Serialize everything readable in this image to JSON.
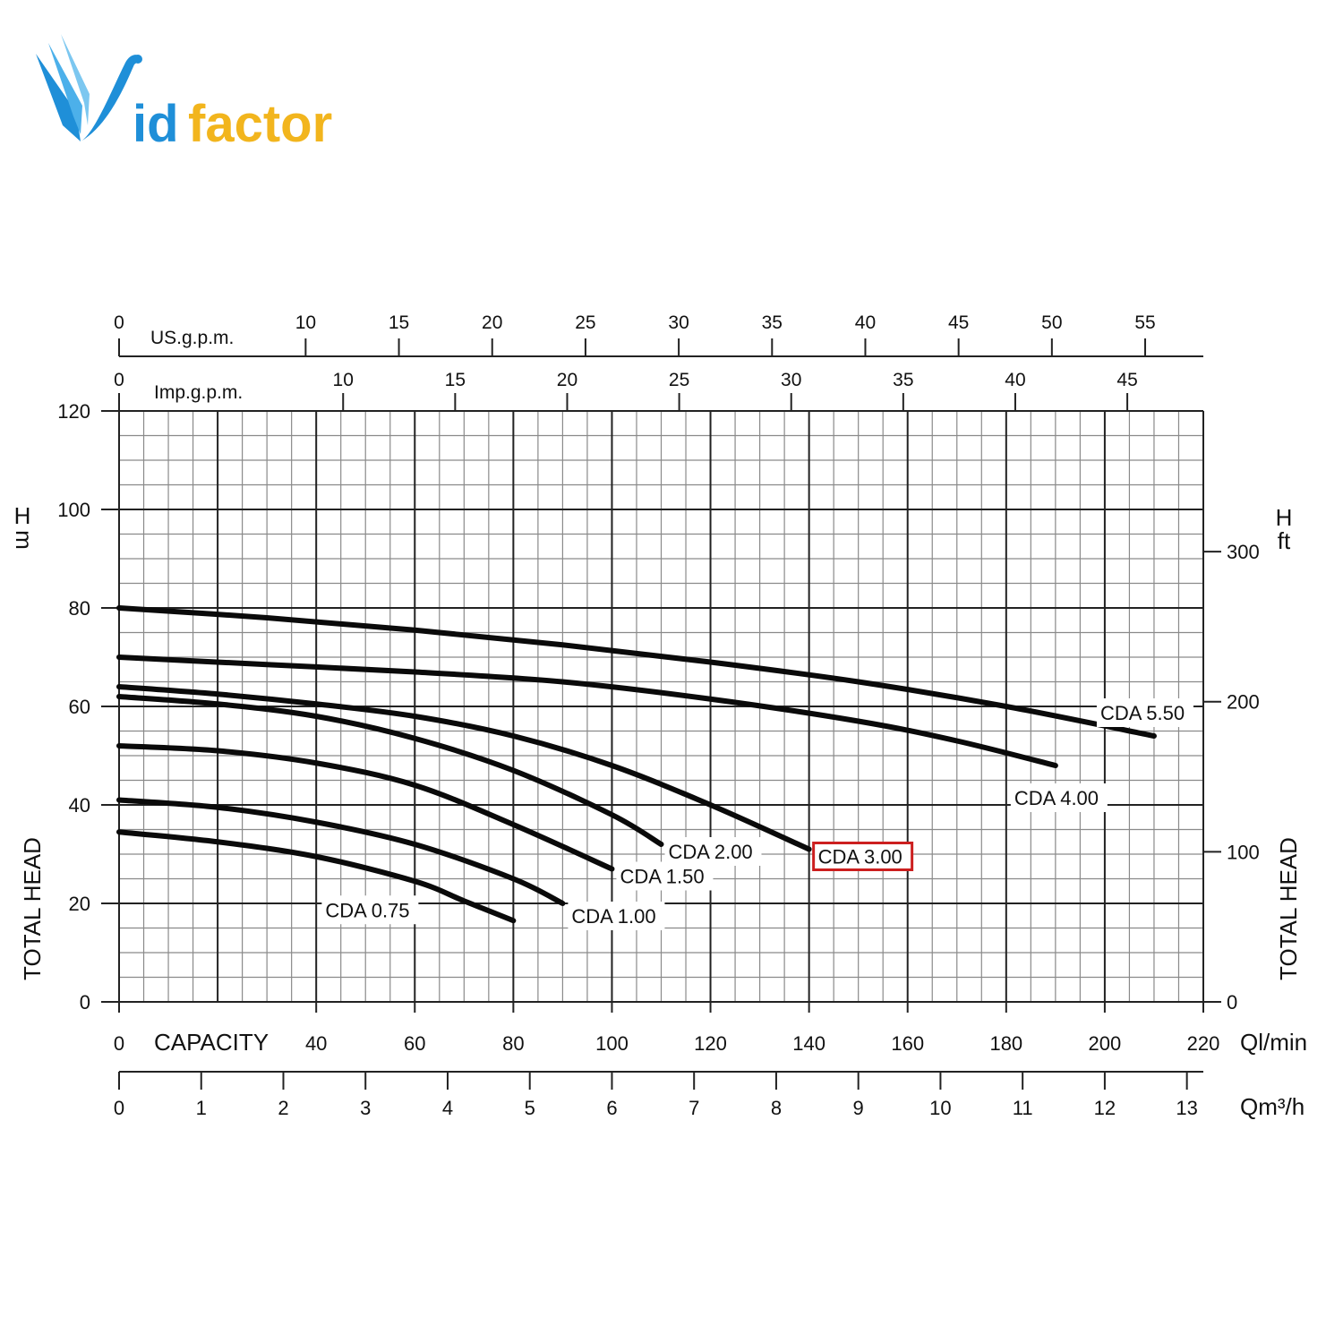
{
  "logo": {
    "text_v": "V",
    "text_id": "id",
    "text_factor": "factor",
    "colors": {
      "blue": "#1f8fd8",
      "yellow": "#f2b51d"
    }
  },
  "chart_data": {
    "type": "line",
    "title": "",
    "xlabel": "CAPACITY",
    "x_unit": "Ql/min",
    "ylabel": "TOTAL HEAD",
    "y_unit_left": "H m",
    "y_unit_right": "H ft",
    "xlim": [
      0,
      220
    ],
    "ylim": [
      0,
      120
    ],
    "grid": true,
    "x_ticks_lmin": [
      "0",
      "40",
      "60",
      "80",
      "100",
      "120",
      "140",
      "160",
      "180",
      "200",
      "220"
    ],
    "y_ticks_m": [
      "0",
      "20",
      "40",
      "60",
      "80",
      "100",
      "120"
    ],
    "secondary_axes": {
      "us_gpm": {
        "label": "US.g.p.m.",
        "ticks": [
          "0",
          "10",
          "15",
          "20",
          "25",
          "30",
          "35",
          "40",
          "45",
          "50",
          "55"
        ]
      },
      "imp_gpm": {
        "label": "Imp.g.p.m.",
        "ticks": [
          "0",
          "10",
          "15",
          "20",
          "25",
          "30",
          "35",
          "40",
          "45"
        ]
      },
      "m3h": {
        "label": "Qm³/h",
        "ticks": [
          "0",
          "1",
          "2",
          "3",
          "4",
          "5",
          "6",
          "7",
          "8",
          "9",
          "10",
          "11",
          "12",
          "13"
        ]
      },
      "ft": {
        "ticks": [
          "0",
          "100",
          "200",
          "300"
        ]
      }
    },
    "highlight": {
      "series": "CDA 3.00",
      "color": "#cc1f1f"
    },
    "series": [
      {
        "name": "CDA 0.75",
        "x": [
          0,
          20,
          40,
          60,
          70,
          80
        ],
        "y": [
          34.5,
          32.5,
          29.5,
          24.5,
          20.5,
          16.5
        ]
      },
      {
        "name": "CDA 1.00",
        "x": [
          0,
          20,
          40,
          60,
          80,
          90
        ],
        "y": [
          41,
          39.5,
          36.5,
          32,
          25,
          20
        ]
      },
      {
        "name": "CDA 1.50",
        "x": [
          0,
          20,
          40,
          60,
          80,
          100
        ],
        "y": [
          52,
          51,
          48.5,
          44,
          36,
          27
        ]
      },
      {
        "name": "CDA 2.00",
        "x": [
          0,
          20,
          40,
          60,
          80,
          100,
          110
        ],
        "y": [
          62,
          60.5,
          58,
          53.5,
          47,
          38,
          32
        ]
      },
      {
        "name": "CDA 3.00",
        "x": [
          0,
          20,
          40,
          60,
          80,
          100,
          120,
          140
        ],
        "y": [
          64,
          62.5,
          60.5,
          58,
          54,
          48,
          40,
          31
        ]
      },
      {
        "name": "CDA 4.00",
        "x": [
          0,
          30,
          60,
          90,
          120,
          150,
          170,
          190
        ],
        "y": [
          70,
          68.5,
          67,
          65,
          61.5,
          57,
          53,
          48
        ]
      },
      {
        "name": "CDA 5.50",
        "x": [
          0,
          30,
          60,
          90,
          120,
          150,
          180,
          210
        ],
        "y": [
          80,
          78,
          75.5,
          72.5,
          69,
          65,
          60,
          54
        ]
      }
    ]
  }
}
